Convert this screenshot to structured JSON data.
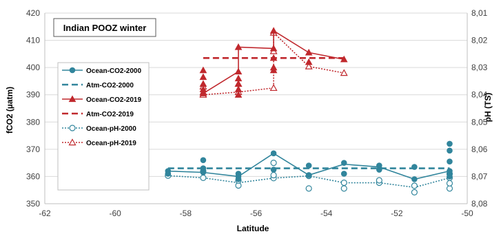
{
  "chart_data": {
    "type": "line",
    "title": "Indian POOZ winter",
    "xlabel": "Latitude",
    "ylabel": "fCO2 (µatm)",
    "y2label": "pH (TS)",
    "xlim": [
      -62,
      -50
    ],
    "ylim": [
      350,
      420
    ],
    "y2lim": [
      8.01,
      8.08
    ],
    "y2_inverted": true,
    "x_ticks": [
      "-62",
      "-60",
      "-58",
      "-56",
      "-54",
      "-52",
      "-50"
    ],
    "y_ticks": [
      "350",
      "360",
      "370",
      "380",
      "390",
      "400",
      "410",
      "420"
    ],
    "y2_ticks": [
      "8,01",
      "8,02",
      "8,03",
      "8,04",
      "8,05",
      "8,06",
      "8,07",
      "8,08"
    ],
    "grid": "horizontal",
    "legend_position": "left",
    "series": [
      {
        "name": "Ocean-CO2-2000",
        "axis": "left",
        "color": "#31859C",
        "marker": "circle-filled",
        "line": "solid",
        "line_x": [
          -58.5,
          -57.5,
          -56.5,
          -55.5,
          -54.5,
          -53.5,
          -52.5,
          -51.5,
          -50.5
        ],
        "line_y": [
          362,
          361.5,
          360,
          368.5,
          360.5,
          364.5,
          363.5,
          359,
          362
        ],
        "points": [
          [
            -58.5,
            362
          ],
          [
            -58.5,
            361
          ],
          [
            -57.5,
            366
          ],
          [
            -57.5,
            363
          ],
          [
            -57.5,
            361.5
          ],
          [
            -56.5,
            361
          ],
          [
            -56.5,
            360
          ],
          [
            -56.5,
            359
          ],
          [
            -55.5,
            368.5
          ],
          [
            -55.5,
            362.5
          ],
          [
            -54.5,
            364
          ],
          [
            -54.5,
            360.5
          ],
          [
            -53.5,
            365
          ],
          [
            -53.5,
            361
          ],
          [
            -52.5,
            364
          ],
          [
            -52.5,
            362.5
          ],
          [
            -51.5,
            363.5
          ],
          [
            -51.5,
            359
          ],
          [
            -50.5,
            372
          ],
          [
            -50.5,
            369.5
          ],
          [
            -50.5,
            365.5
          ],
          [
            -50.5,
            362
          ],
          [
            -50.5,
            361
          ],
          [
            -50.5,
            360
          ]
        ]
      },
      {
        "name": "Atm-CO2-2000",
        "axis": "left",
        "color": "#31859C",
        "line": "dashed",
        "line_x": [
          -58.5,
          -50.5
        ],
        "line_y": [
          363,
          363
        ]
      },
      {
        "name": "Ocean-CO2-2019",
        "axis": "left",
        "color": "#C0282D",
        "marker": "triangle-filled",
        "line": "solid",
        "line_x": [
          -57.5,
          -56.5,
          -56.5,
          -55.5,
          -55.5,
          -54.5,
          -53.5
        ],
        "line_y": [
          390.5,
          398.5,
          407.5,
          407,
          413.5,
          405.5,
          403
        ],
        "points": [
          [
            -57.5,
            399
          ],
          [
            -57.5,
            396.5
          ],
          [
            -57.5,
            394
          ],
          [
            -57.5,
            392
          ],
          [
            -57.5,
            391
          ],
          [
            -57.5,
            390.5
          ],
          [
            -56.5,
            407.5
          ],
          [
            -56.5,
            398.5
          ],
          [
            -56.5,
            396
          ],
          [
            -56.5,
            394
          ],
          [
            -56.5,
            392
          ],
          [
            -56.5,
            390
          ],
          [
            -55.5,
            413.5
          ],
          [
            -55.5,
            407
          ],
          [
            -55.5,
            403.5
          ],
          [
            -55.5,
            400
          ],
          [
            -55.5,
            399
          ],
          [
            -54.5,
            405.5
          ],
          [
            -54.5,
            402
          ],
          [
            -53.5,
            403
          ]
        ]
      },
      {
        "name": "Atm-CO2-2019",
        "axis": "left",
        "color": "#C0282D",
        "line": "dashed",
        "line_x": [
          -57.5,
          -53.5
        ],
        "line_y": [
          403.5,
          403.5
        ]
      },
      {
        "name": "Ocean-pH-2000",
        "axis": "right",
        "color": "#31859C",
        "marker": "circle-open",
        "line": "dotted",
        "line_x": [
          -58.5,
          -57.5,
          -56.5,
          -55.5,
          -54.5,
          -53.5,
          -52.5,
          -51.5,
          -50.5
        ],
        "line_y": [
          8.0697,
          8.0705,
          8.0723,
          8.0706,
          8.0698,
          8.0723,
          8.0723,
          8.074,
          8.0705
        ],
        "points": [
          [
            -58.5,
            8.0697
          ],
          [
            -57.5,
            8.0705
          ],
          [
            -57.5,
            8.068
          ],
          [
            -56.5,
            8.0733
          ],
          [
            -56.5,
            8.0715
          ],
          [
            -55.5,
            8.065
          ],
          [
            -55.5,
            8.0706
          ],
          [
            -55.5,
            8.0695
          ],
          [
            -54.5,
            8.0744
          ],
          [
            -54.5,
            8.0698
          ],
          [
            -53.5,
            8.0744
          ],
          [
            -53.5,
            8.0723
          ],
          [
            -52.5,
            8.0723
          ],
          [
            -52.5,
            8.0714
          ],
          [
            -51.5,
            8.0734
          ],
          [
            -51.5,
            8.0758
          ],
          [
            -50.5,
            8.0744
          ],
          [
            -50.5,
            8.0725
          ],
          [
            -50.5,
            8.0705
          ],
          [
            -50.5,
            8.069
          ]
        ]
      },
      {
        "name": "Ocean-pH-2019",
        "axis": "right",
        "color": "#C0282D",
        "marker": "triangle-open",
        "line": "dotted",
        "line_x": [
          -57.5,
          -56.5,
          -55.5,
          -55.5,
          -54.5,
          -53.5
        ],
        "line_y": [
          8.04,
          8.039,
          8.0375,
          8.0172,
          8.0296,
          8.032
        ],
        "points": [
          [
            -57.5,
            8.04
          ],
          [
            -57.5,
            8.037
          ],
          [
            -56.5,
            8.039
          ],
          [
            -56.5,
            8.036
          ],
          [
            -55.5,
            8.0172
          ],
          [
            -55.5,
            8.024
          ],
          [
            -55.5,
            8.0375
          ],
          [
            -54.5,
            8.0296
          ],
          [
            -53.5,
            8.032
          ]
        ]
      }
    ]
  }
}
